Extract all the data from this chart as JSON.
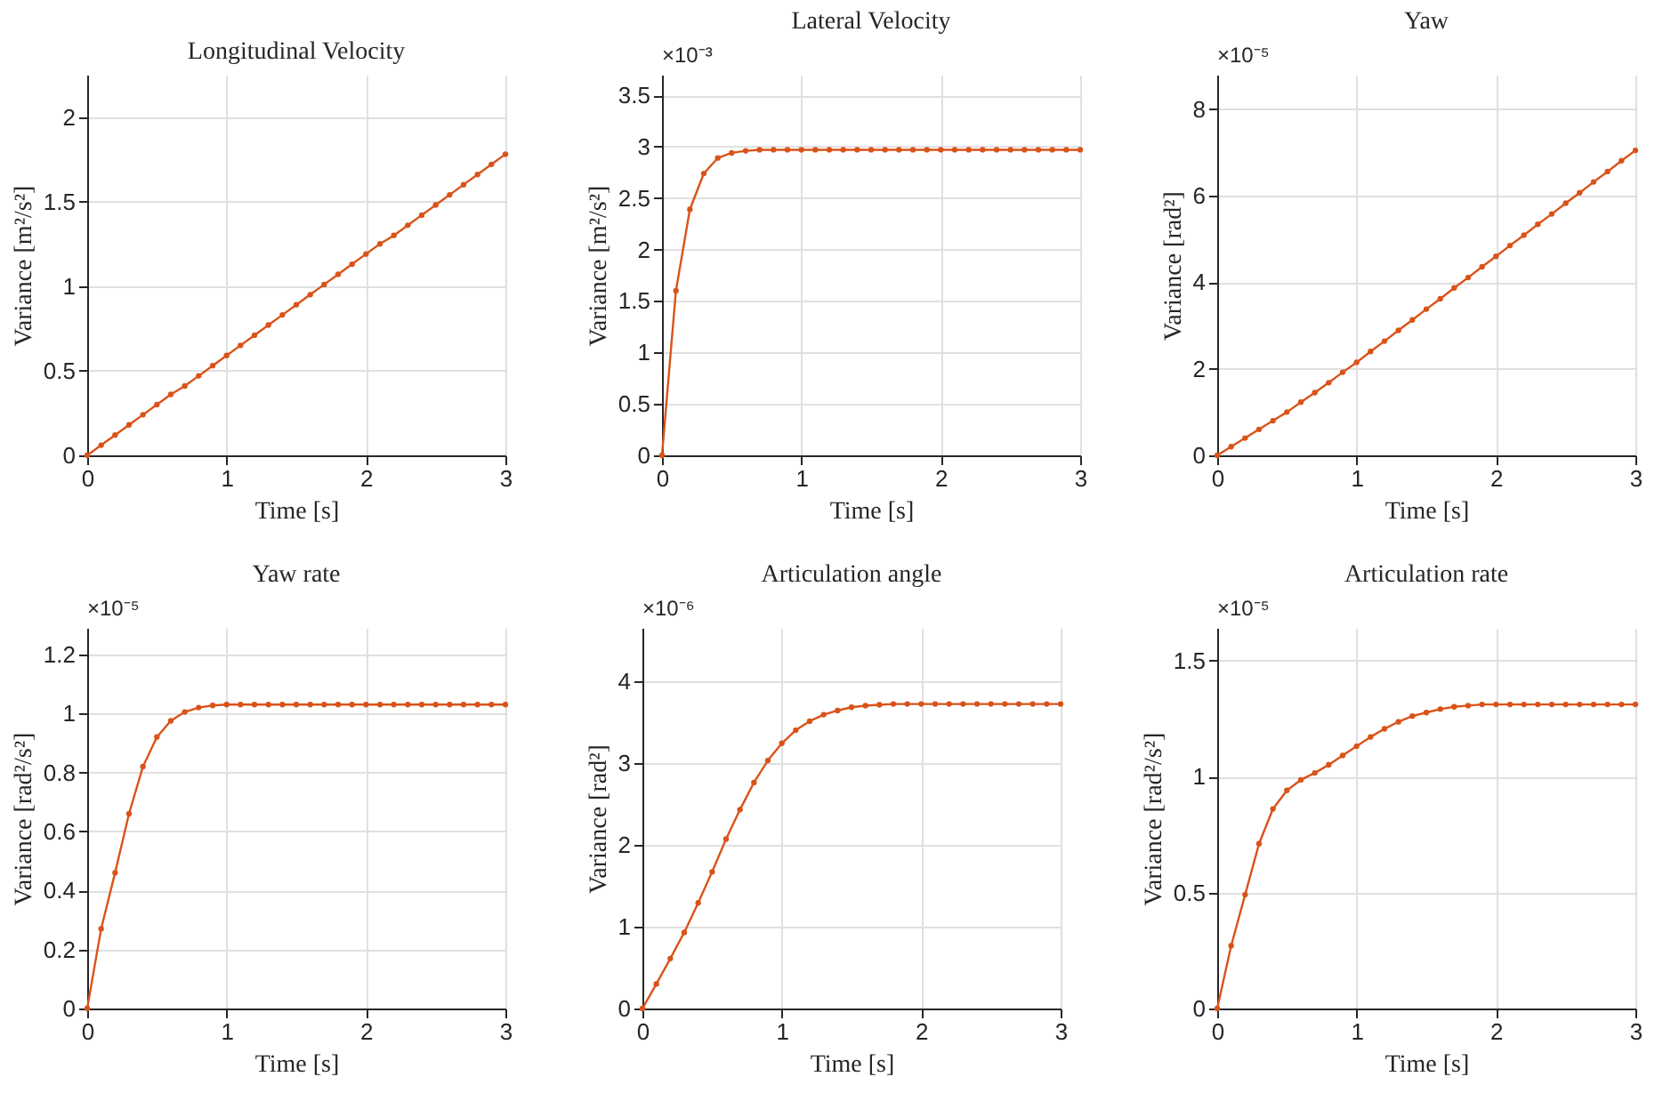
{
  "chart_data": [
    {
      "type": "line",
      "title": "Longitudinal Velocity",
      "xlabel": "Time [s]",
      "ylabel": "Variance [m²/s²]",
      "xlim": [
        0,
        3
      ],
      "xticks": [
        0,
        1,
        2,
        3
      ],
      "ylim": [
        0,
        2.25
      ],
      "yticks": [
        0,
        0.5,
        1,
        1.5,
        2
      ],
      "grid": true,
      "marker": "circle",
      "x": [
        0,
        0.1,
        0.2,
        0.3,
        0.4,
        0.5,
        0.6,
        0.7,
        0.8,
        0.9,
        1,
        1.1,
        1.2,
        1.3,
        1.4,
        1.5,
        1.6,
        1.7,
        1.8,
        1.9,
        2,
        2.1,
        2.2,
        2.3,
        2.4,
        2.5,
        2.6,
        2.7,
        2.8,
        2.9,
        3
      ],
      "series": [
        {
          "color": "#d95319",
          "values": [
            0,
            0.06,
            0.12,
            0.18,
            0.24,
            0.3,
            0.36,
            0.41,
            0.47,
            0.53,
            0.59,
            0.65,
            0.71,
            0.77,
            0.83,
            0.89,
            0.95,
            1.01,
            1.07,
            1.13,
            1.19,
            1.25,
            1.3,
            1.36,
            1.42,
            1.48,
            1.54,
            1.6,
            1.66,
            1.72,
            1.78
          ]
        }
      ]
    },
    {
      "type": "line",
      "title": "Lateral Velocity",
      "xlabel": "Time [s]",
      "ylabel": "Variance [m²/s²]",
      "annotations": [
        "×10⁻³"
      ],
      "xlim": [
        0,
        3
      ],
      "xticks": [
        0,
        1,
        2,
        3
      ],
      "ylim": [
        0,
        3.7
      ],
      "yticks": [
        0,
        0.5,
        1,
        1.5,
        2,
        2.5,
        3,
        3.5
      ],
      "grid": true,
      "marker": "circle",
      "x": [
        0,
        0.1,
        0.2,
        0.3,
        0.4,
        0.5,
        0.6,
        0.7,
        0.8,
        0.9,
        1,
        1.1,
        1.2,
        1.3,
        1.4,
        1.5,
        1.6,
        1.7,
        1.8,
        1.9,
        2,
        2.1,
        2.2,
        2.3,
        2.4,
        2.5,
        2.6,
        2.7,
        2.8,
        2.9,
        3
      ],
      "series": [
        {
          "color": "#d95319",
          "values": [
            0,
            1.6,
            2.39,
            2.74,
            2.89,
            2.94,
            2.96,
            2.97,
            2.97,
            2.97,
            2.97,
            2.97,
            2.97,
            2.97,
            2.97,
            2.97,
            2.97,
            2.97,
            2.97,
            2.97,
            2.97,
            2.97,
            2.97,
            2.97,
            2.97,
            2.97,
            2.97,
            2.97,
            2.97,
            2.97,
            2.97
          ]
        }
      ]
    },
    {
      "type": "line",
      "title": "Yaw",
      "xlabel": "Time [s]",
      "ylabel": "Variance [rad²]",
      "annotations": [
        "×10⁻⁵"
      ],
      "xlim": [
        0,
        3
      ],
      "xticks": [
        0,
        1,
        2,
        3
      ],
      "ylim": [
        0,
        8.8
      ],
      "yticks": [
        0,
        2,
        4,
        6,
        8
      ],
      "grid": true,
      "marker": "circle",
      "x": [
        0,
        0.1,
        0.2,
        0.3,
        0.4,
        0.5,
        0.6,
        0.7,
        0.8,
        0.9,
        1,
        1.1,
        1.2,
        1.3,
        1.4,
        1.5,
        1.6,
        1.7,
        1.8,
        1.9,
        2,
        2.1,
        2.2,
        2.3,
        2.4,
        2.5,
        2.6,
        2.7,
        2.8,
        2.9,
        3
      ],
      "series": [
        {
          "color": "#d95319",
          "values": [
            0,
            0.2,
            0.4,
            0.6,
            0.8,
            1.0,
            1.23,
            1.45,
            1.68,
            1.92,
            2.15,
            2.4,
            2.64,
            2.89,
            3.13,
            3.38,
            3.62,
            3.87,
            4.11,
            4.36,
            4.6,
            4.85,
            5.09,
            5.34,
            5.58,
            5.83,
            6.07,
            6.32,
            6.56,
            6.81,
            7.05
          ]
        }
      ]
    },
    {
      "type": "line",
      "title": "Yaw rate",
      "xlabel": "Time [s]",
      "ylabel": "Variance [rad²/s²]",
      "annotations": [
        "×10⁻⁵"
      ],
      "xlim": [
        0,
        3
      ],
      "xticks": [
        0,
        1,
        2,
        3
      ],
      "ylim": [
        0,
        1.29
      ],
      "yticks": [
        0,
        0.2,
        0.4,
        0.6,
        0.8,
        1,
        1.2
      ],
      "grid": true,
      "marker": "circle",
      "x": [
        0,
        0.1,
        0.2,
        0.3,
        0.4,
        0.5,
        0.6,
        0.7,
        0.8,
        0.9,
        1,
        1.1,
        1.2,
        1.3,
        1.4,
        1.5,
        1.6,
        1.7,
        1.8,
        1.9,
        2,
        2.1,
        2.2,
        2.3,
        2.4,
        2.5,
        2.6,
        2.7,
        2.8,
        2.9,
        3
      ],
      "series": [
        {
          "color": "#d95319",
          "values": [
            0,
            0.27,
            0.46,
            0.66,
            0.82,
            0.92,
            0.975,
            1.005,
            1.02,
            1.027,
            1.03,
            1.03,
            1.03,
            1.03,
            1.03,
            1.03,
            1.03,
            1.03,
            1.03,
            1.03,
            1.03,
            1.03,
            1.03,
            1.03,
            1.03,
            1.03,
            1.03,
            1.03,
            1.03,
            1.03,
            1.03
          ]
        }
      ]
    },
    {
      "type": "line",
      "title": "Articulation angle",
      "xlabel": "Time [s]",
      "ylabel": "Variance [rad²]",
      "annotations": [
        "×10⁻⁶"
      ],
      "xlim": [
        0,
        3
      ],
      "xticks": [
        0,
        1,
        2,
        3
      ],
      "ylim": [
        0,
        4.65
      ],
      "yticks": [
        0,
        1,
        2,
        3,
        4
      ],
      "grid": true,
      "marker": "circle",
      "x": [
        0,
        0.1,
        0.2,
        0.3,
        0.4,
        0.5,
        0.6,
        0.7,
        0.8,
        0.9,
        1,
        1.1,
        1.2,
        1.3,
        1.4,
        1.5,
        1.6,
        1.7,
        1.8,
        1.9,
        2,
        2.1,
        2.2,
        2.3,
        2.4,
        2.5,
        2.6,
        2.7,
        2.8,
        2.9,
        3
      ],
      "series": [
        {
          "color": "#d95319",
          "values": [
            0,
            0.3,
            0.61,
            0.93,
            1.29,
            1.67,
            2.07,
            2.43,
            2.76,
            3.03,
            3.24,
            3.4,
            3.51,
            3.59,
            3.64,
            3.68,
            3.7,
            3.71,
            3.72,
            3.72,
            3.72,
            3.72,
            3.72,
            3.72,
            3.72,
            3.72,
            3.72,
            3.72,
            3.72,
            3.72,
            3.72
          ]
        }
      ]
    },
    {
      "type": "line",
      "title": "Articulation rate",
      "xlabel": "Time [s]",
      "ylabel": "Variance [rad²/s²]",
      "annotations": [
        "×10⁻⁵"
      ],
      "xlim": [
        0,
        3
      ],
      "xticks": [
        0,
        1,
        2,
        3
      ],
      "ylim": [
        0,
        1.64
      ],
      "yticks": [
        0,
        0.5,
        1,
        1.5
      ],
      "grid": true,
      "marker": "circle",
      "x": [
        0,
        0.1,
        0.2,
        0.3,
        0.4,
        0.5,
        0.6,
        0.7,
        0.8,
        0.9,
        1,
        1.1,
        1.2,
        1.3,
        1.4,
        1.5,
        1.6,
        1.7,
        1.8,
        1.9,
        2,
        2.1,
        2.2,
        2.3,
        2.4,
        2.5,
        2.6,
        2.7,
        2.8,
        2.9,
        3
      ],
      "series": [
        {
          "color": "#d95319",
          "values": [
            0,
            0.27,
            0.49,
            0.71,
            0.86,
            0.94,
            0.985,
            1.015,
            1.05,
            1.09,
            1.13,
            1.17,
            1.205,
            1.235,
            1.26,
            1.275,
            1.29,
            1.3,
            1.305,
            1.31,
            1.31,
            1.31,
            1.31,
            1.31,
            1.31,
            1.31,
            1.31,
            1.31,
            1.31,
            1.31,
            1.31
          ]
        }
      ]
    }
  ]
}
